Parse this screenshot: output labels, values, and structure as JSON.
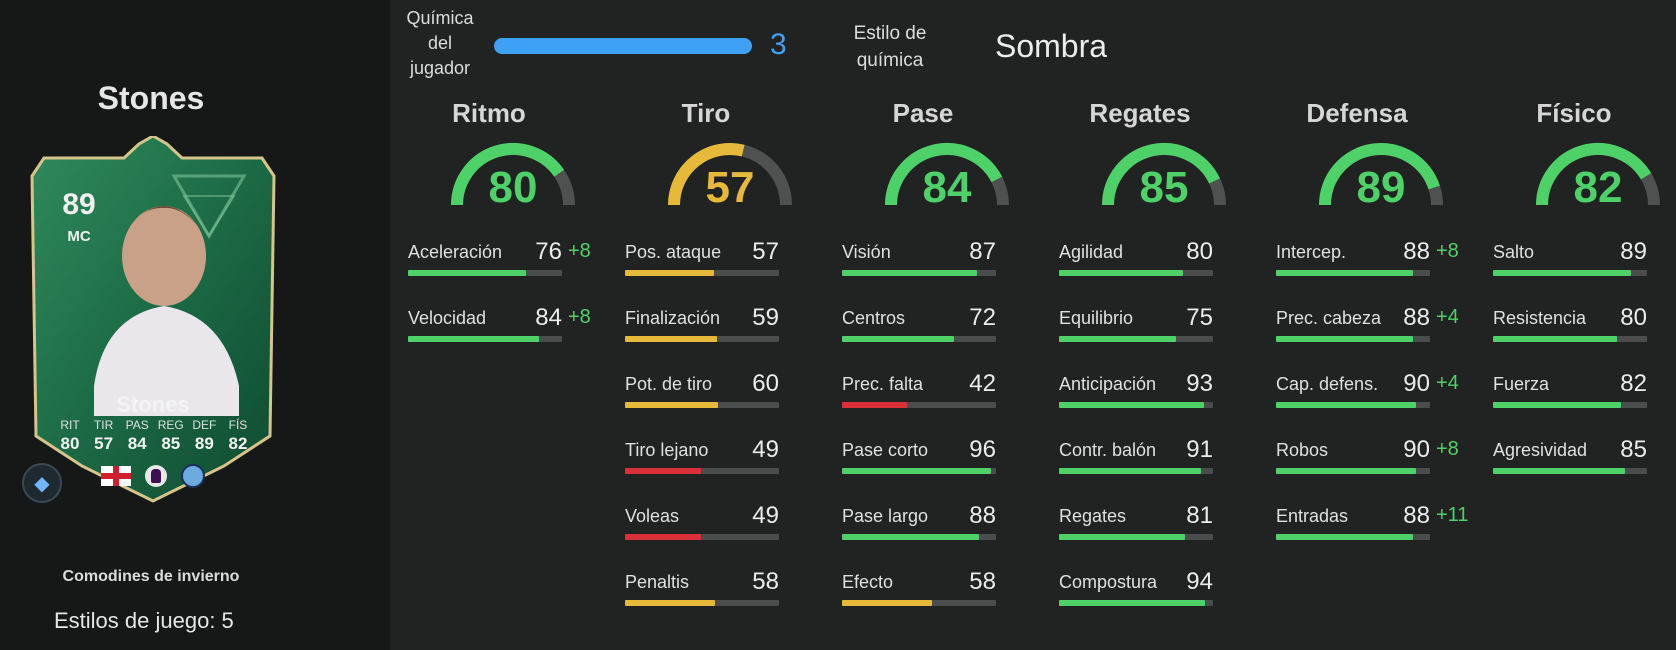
{
  "colors": {
    "green": "#4fd16a",
    "yellow": "#e6b93a",
    "red": "#d9303a",
    "blue": "#3fa1f5",
    "gauge_track": "#4e514f"
  },
  "player": {
    "name": "Stones",
    "promo": "Comodines de invierno",
    "playstyles_text": "Estilos de juego: 5",
    "card": {
      "rating": "89",
      "position": "MC",
      "name": "Stones",
      "mini_stats": [
        {
          "label": "RIT",
          "value": "80"
        },
        {
          "label": "TIR",
          "value": "57"
        },
        {
          "label": "PAS",
          "value": "84"
        },
        {
          "label": "REG",
          "value": "85"
        },
        {
          "label": "DEF",
          "value": "89"
        },
        {
          "label": "FÍS",
          "value": "82"
        }
      ],
      "nation_icon": "england-flag-icon",
      "league_icon": "premier-league-icon",
      "club_icon": "manchester-city-icon"
    }
  },
  "chemistry": {
    "label_lines": [
      "Química",
      "del",
      "jugador"
    ],
    "value": "3",
    "fill_fraction": 1.0,
    "style_label_lines": [
      "Estilo de",
      "química"
    ],
    "style_value": "Sombra"
  },
  "categories": [
    {
      "title": "Ritmo",
      "value": "80",
      "stats": [
        {
          "name": "Aceleración",
          "value": "76",
          "bonus": "+8"
        },
        {
          "name": "Velocidad",
          "value": "84",
          "bonus": "+8"
        }
      ]
    },
    {
      "title": "Tiro",
      "value": "57",
      "stats": [
        {
          "name": "Pos. ataque",
          "value": "57",
          "bonus": ""
        },
        {
          "name": "Finalización",
          "value": "59",
          "bonus": ""
        },
        {
          "name": "Pot. de tiro",
          "value": "60",
          "bonus": ""
        },
        {
          "name": "Tiro lejano",
          "value": "49",
          "bonus": ""
        },
        {
          "name": "Voleas",
          "value": "49",
          "bonus": ""
        },
        {
          "name": "Penaltis",
          "value": "58",
          "bonus": ""
        }
      ]
    },
    {
      "title": "Pase",
      "value": "84",
      "stats": [
        {
          "name": "Visión",
          "value": "87",
          "bonus": ""
        },
        {
          "name": "Centros",
          "value": "72",
          "bonus": ""
        },
        {
          "name": "Prec. falta",
          "value": "42",
          "bonus": ""
        },
        {
          "name": "Pase corto",
          "value": "96",
          "bonus": ""
        },
        {
          "name": "Pase largo",
          "value": "88",
          "bonus": ""
        },
        {
          "name": "Efecto",
          "value": "58",
          "bonus": ""
        }
      ]
    },
    {
      "title": "Regates",
      "value": "85",
      "stats": [
        {
          "name": "Agilidad",
          "value": "80",
          "bonus": ""
        },
        {
          "name": "Equilibrio",
          "value": "75",
          "bonus": ""
        },
        {
          "name": "Anticipación",
          "value": "93",
          "bonus": ""
        },
        {
          "name": "Contr. balón",
          "value": "91",
          "bonus": ""
        },
        {
          "name": "Regates",
          "value": "81",
          "bonus": ""
        },
        {
          "name": "Compostura",
          "value": "94",
          "bonus": ""
        }
      ]
    },
    {
      "title": "Defensa",
      "value": "89",
      "stats": [
        {
          "name": "Intercep.",
          "value": "88",
          "bonus": "+8"
        },
        {
          "name": "Prec. cabeza",
          "value": "88",
          "bonus": "+4"
        },
        {
          "name": "Cap. defens.",
          "value": "90",
          "bonus": "+4"
        },
        {
          "name": "Robos",
          "value": "90",
          "bonus": "+8"
        },
        {
          "name": "Entradas",
          "value": "88",
          "bonus": "+11"
        }
      ]
    },
    {
      "title": "Físico",
      "value": "82",
      "stats": [
        {
          "name": "Salto",
          "value": "89",
          "bonus": ""
        },
        {
          "name": "Resistencia",
          "value": "80",
          "bonus": ""
        },
        {
          "name": "Fuerza",
          "value": "82",
          "bonus": ""
        },
        {
          "name": "Agresividad",
          "value": "85",
          "bonus": ""
        }
      ]
    }
  ]
}
